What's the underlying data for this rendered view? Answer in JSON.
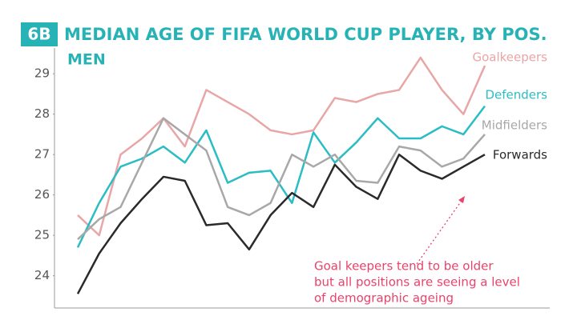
{
  "chart_data": {
    "type": "line",
    "badge": "6B",
    "title": "MEDIAN AGE OF FIFA WORLD CUP PLAYER, BY POS.",
    "subtitle": "MEN",
    "annotation": [
      "Goal keepers tend to be older",
      "but all positions are seeing a level",
      "of demographic ageing"
    ],
    "categories": [
      null,
      null,
      null,
      null,
      null,
      null,
      null,
      null,
      null,
      null,
      null,
      null,
      null,
      null,
      null,
      null,
      null,
      null,
      null,
      null
    ],
    "series": [
      {
        "name": "Goalkeepers",
        "color": "#e8a6a6",
        "values": [
          25.5,
          25.0,
          27.0,
          27.4,
          27.9,
          27.2,
          28.6,
          28.3,
          28.0,
          27.6,
          27.5,
          27.6,
          28.4,
          28.3,
          28.5,
          28.6,
          29.4,
          28.6,
          28.0,
          29.2
        ]
      },
      {
        "name": "Defenders",
        "color": "#2bbdc4",
        "values": [
          24.7,
          25.8,
          26.7,
          26.9,
          27.2,
          26.8,
          27.6,
          26.3,
          26.55,
          26.6,
          25.8,
          27.55,
          26.8,
          27.3,
          27.9,
          27.4,
          27.4,
          27.7,
          27.5,
          28.2
        ]
      },
      {
        "name": "Midfielders",
        "color": "#a8a8a8",
        "values": [
          24.9,
          25.4,
          25.7,
          26.8,
          27.9,
          27.5,
          27.1,
          25.7,
          25.5,
          25.8,
          27.0,
          26.7,
          27.0,
          26.35,
          26.3,
          27.2,
          27.1,
          26.7,
          26.9,
          27.5
        ]
      },
      {
        "name": "Forwards",
        "color": "#2a2a2a",
        "values": [
          23.55,
          24.55,
          25.3,
          25.9,
          26.45,
          26.35,
          25.25,
          25.3,
          24.65,
          25.5,
          26.05,
          25.7,
          26.75,
          26.2,
          25.9,
          27.0,
          26.6,
          26.4,
          26.7,
          27.0
        ]
      }
    ],
    "ylim": [
      23.2,
      29.5
    ],
    "yticks": [
      24,
      25,
      26,
      27,
      28,
      29
    ]
  }
}
